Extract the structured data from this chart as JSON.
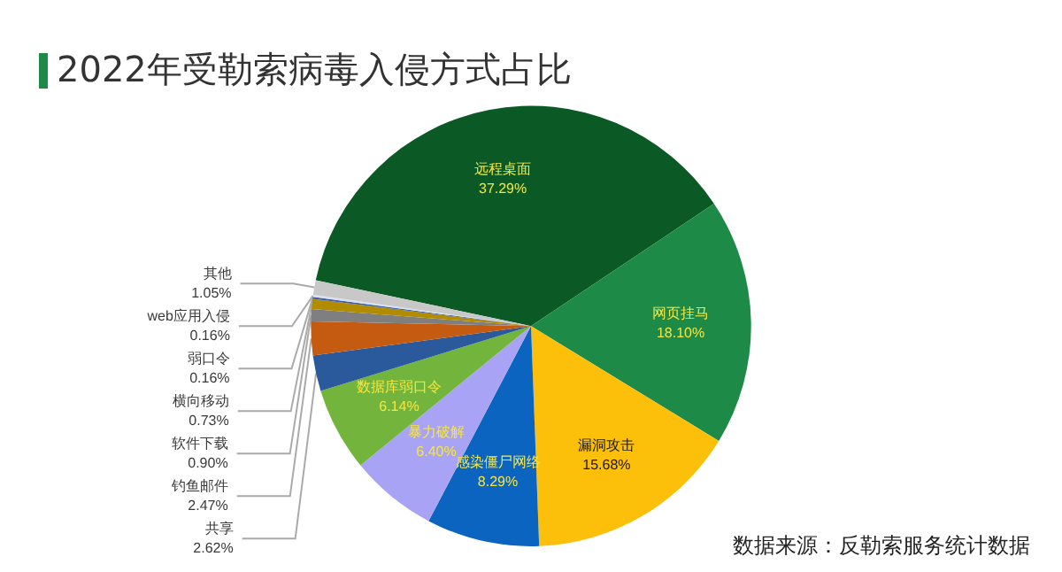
{
  "chart_data": {
    "type": "pie",
    "title": "2022年受勒索病毒入侵方式占比",
    "categories": [
      "远程桌面",
      "网页挂马",
      "漏洞攻击",
      "感染僵尸网络",
      "暴力破解",
      "数据库弱口令",
      "共享",
      "钓鱼邮件",
      "软件下载",
      "横向移动",
      "弱口令",
      "web应用入侵",
      "其他"
    ],
    "values": [
      37.29,
      18.1,
      15.68,
      8.29,
      6.4,
      6.14,
      2.62,
      2.47,
      0.9,
      0.73,
      0.16,
      0.16,
      1.05
    ],
    "value_labels": [
      "37.29%",
      "18.10%",
      "15.68%",
      "8.29%",
      "6.40%",
      "6.14%",
      "2.62%",
      "2.47%",
      "0.90%",
      "0.73%",
      "0.16%",
      "0.16%",
      "1.05%"
    ],
    "colors": [
      "#0b5a26",
      "#1e8a47",
      "#fcbf0a",
      "#0a64c0",
      "#a9a3f5",
      "#73b43c",
      "#2a5a9c",
      "#c55a11",
      "#7f7f7f",
      "#b28c00",
      "#3d5ea8",
      "#d6e2ef",
      "#c8c8c8"
    ],
    "legend": false,
    "annotations": [
      "数据来源：反勒索服务统计数据"
    ]
  }
}
